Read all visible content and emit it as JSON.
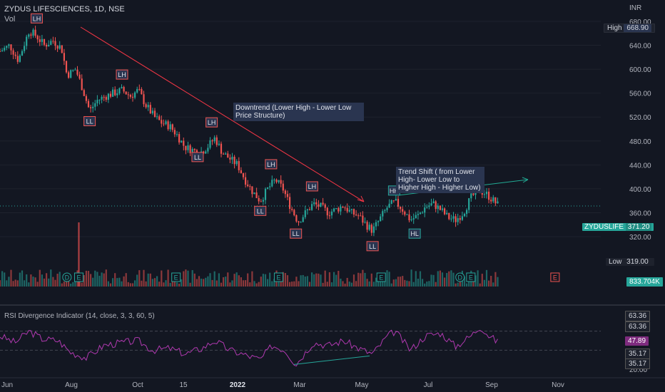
{
  "header": {
    "symbol_line": "ZYDUS LIFESCIENCES, 1D, NSE",
    "volume_label": "Vol"
  },
  "currency": "INR",
  "rsi_title": "RSI Divergence Indicator (14, close, 3, 3, 60, 5)",
  "price_tags": {
    "high_label": "High",
    "high_value": "668.90",
    "low_label": "Low",
    "low_value": "319.00",
    "symbol": "ZYDUSLIFE",
    "last_value": "371.20",
    "volume_value": "833.704K"
  },
  "rsi_tags": [
    "63.36",
    "63.36",
    "47.89",
    "35.17",
    "35.17"
  ],
  "annotations": {
    "downtrend": "Downtrend (Lower High - Lower Low Price Structure)",
    "trendshift": "Trend Shift ( from Lower High- Lower Low to Higher High - Higher Low)"
  },
  "colors": {
    "background": "#131722",
    "up": "#26a69a",
    "down": "#ef5350",
    "rsi_line": "#b039b0",
    "label_box": "#2a3550",
    "downtrend_arrow": "#f23645",
    "uptrend_arrow": "#22ab94"
  },
  "chart_data": {
    "type": "candlestick",
    "price_axis": {
      "ticks": [
        680,
        640,
        600,
        560,
        520,
        480,
        440,
        400,
        360,
        320
      ],
      "tick_labels": [
        "680.00",
        "640.00",
        "600.00",
        "560.00",
        "520.00",
        "480.00",
        "440.00",
        "400.00",
        "360.00",
        "320.00"
      ]
    },
    "x_axis": {
      "labels": [
        "Jun",
        "Aug",
        "Oct",
        "15",
        "2022",
        "Mar",
        "May",
        "Jul",
        "Sep",
        "Nov"
      ]
    },
    "rsi_axis": {
      "ticks": [
        20
      ],
      "tick_labels": [
        "20.00"
      ]
    },
    "swing_labels": [
      {
        "label": "LH",
        "date": "2021-07-05",
        "price": 668.9
      },
      {
        "label": "LL",
        "date": "2021-08-23",
        "price": 528
      },
      {
        "label": "LH",
        "date": "2021-09-22",
        "price": 575
      },
      {
        "label": "LH",
        "date": "2021-12-14",
        "price": 495
      },
      {
        "label": "LL",
        "date": "2021-12-01",
        "price": 468
      },
      {
        "label": "LH",
        "date": "2022-02-07",
        "price": 425
      },
      {
        "label": "LL",
        "date": "2022-01-28",
        "price": 378
      },
      {
        "label": "LH",
        "date": "2022-03-17",
        "price": 388
      },
      {
        "label": "LL",
        "date": "2022-03-02",
        "price": 340
      },
      {
        "label": "LL",
        "date": "2022-05-12",
        "price": 319
      },
      {
        "label": "HH",
        "date": "2022-06-01",
        "price": 381
      },
      {
        "label": "HL",
        "date": "2022-06-20",
        "price": 340
      }
    ],
    "event_markers": [
      {
        "label": "D",
        "date": "2021-08-02"
      },
      {
        "label": "E",
        "date": "2021-08-13"
      },
      {
        "label": "E",
        "date": "2021-11-11"
      },
      {
        "label": "E",
        "date": "2022-02-14"
      },
      {
        "label": "E",
        "date": "2022-05-20"
      },
      {
        "label": "E",
        "date": "2022-08-11"
      },
      {
        "label": "D",
        "date": "2022-08-01"
      },
      {
        "label": "E",
        "date": "2022-10-28"
      }
    ],
    "price_path": [
      [
        "2021-06-01",
        630
      ],
      [
        "2021-06-10",
        640
      ],
      [
        "2021-06-18",
        615
      ],
      [
        "2021-06-28",
        665
      ],
      [
        "2021-07-05",
        655
      ],
      [
        "2021-07-12",
        640
      ],
      [
        "2021-07-20",
        648
      ],
      [
        "2021-07-28",
        635
      ],
      [
        "2021-08-02",
        590
      ],
      [
        "2021-08-10",
        600
      ],
      [
        "2021-08-16",
        570
      ],
      [
        "2021-08-23",
        530
      ],
      [
        "2021-08-30",
        548
      ],
      [
        "2021-09-07",
        555
      ],
      [
        "2021-09-14",
        560
      ],
      [
        "2021-09-22",
        565
      ],
      [
        "2021-09-30",
        555
      ],
      [
        "2021-10-07",
        565
      ],
      [
        "2021-10-14",
        540
      ],
      [
        "2021-10-22",
        520
      ],
      [
        "2021-10-29",
        510
      ],
      [
        "2021-11-05",
        505
      ],
      [
        "2021-11-12",
        490
      ],
      [
        "2021-11-19",
        470
      ],
      [
        "2021-11-26",
        465
      ],
      [
        "2021-12-03",
        460
      ],
      [
        "2021-12-10",
        470
      ],
      [
        "2021-12-17",
        485
      ],
      [
        "2021-12-24",
        460
      ],
      [
        "2021-12-31",
        450
      ],
      [
        "2022-01-07",
        440
      ],
      [
        "2022-01-14",
        415
      ],
      [
        "2022-01-21",
        395
      ],
      [
        "2022-01-28",
        380
      ],
      [
        "2022-02-04",
        400
      ],
      [
        "2022-02-11",
        415
      ],
      [
        "2022-02-18",
        400
      ],
      [
        "2022-02-25",
        370
      ],
      [
        "2022-03-04",
        345
      ],
      [
        "2022-03-11",
        360
      ],
      [
        "2022-03-18",
        375
      ],
      [
        "2022-03-25",
        370
      ],
      [
        "2022-04-01",
        360
      ],
      [
        "2022-04-08",
        365
      ],
      [
        "2022-04-15",
        372
      ],
      [
        "2022-04-22",
        360
      ],
      [
        "2022-04-29",
        355
      ],
      [
        "2022-05-06",
        340
      ],
      [
        "2022-05-12",
        330
      ],
      [
        "2022-05-19",
        350
      ],
      [
        "2022-05-26",
        370
      ],
      [
        "2022-06-02",
        378
      ],
      [
        "2022-06-09",
        365
      ],
      [
        "2022-06-16",
        348
      ],
      [
        "2022-06-23",
        355
      ],
      [
        "2022-06-30",
        370
      ],
      [
        "2022-07-07",
        375
      ],
      [
        "2022-07-14",
        365
      ],
      [
        "2022-07-21",
        352
      ],
      [
        "2022-07-28",
        348
      ],
      [
        "2022-08-04",
        360
      ],
      [
        "2022-08-11",
        385
      ],
      [
        "2022-08-18",
        398
      ],
      [
        "2022-08-25",
        392
      ],
      [
        "2022-09-01",
        380
      ],
      [
        "2022-09-06",
        371.2
      ]
    ],
    "rsi_path": [
      [
        "2021-06-01",
        55
      ],
      [
        "2021-06-15",
        48
      ],
      [
        "2021-06-28",
        60
      ],
      [
        "2021-07-10",
        52
      ],
      [
        "2021-07-25",
        50
      ],
      [
        "2021-08-05",
        38
      ],
      [
        "2021-08-20",
        32
      ],
      [
        "2021-09-05",
        45
      ],
      [
        "2021-09-22",
        48
      ],
      [
        "2021-10-07",
        50
      ],
      [
        "2021-10-20",
        40
      ],
      [
        "2021-11-05",
        42
      ],
      [
        "2021-11-20",
        36
      ],
      [
        "2021-12-05",
        42
      ],
      [
        "2021-12-17",
        50
      ],
      [
        "2021-12-31",
        40
      ],
      [
        "2022-01-14",
        35
      ],
      [
        "2022-01-28",
        30
      ],
      [
        "2022-02-08",
        45
      ],
      [
        "2022-02-20",
        40
      ],
      [
        "2022-03-02",
        25
      ],
      [
        "2022-03-18",
        48
      ],
      [
        "2022-04-01",
        45
      ],
      [
        "2022-04-15",
        50
      ],
      [
        "2022-04-29",
        42
      ],
      [
        "2022-05-12",
        36
      ],
      [
        "2022-05-26",
        55
      ],
      [
        "2022-06-02",
        60
      ],
      [
        "2022-06-16",
        40
      ],
      [
        "2022-06-30",
        55
      ],
      [
        "2022-07-14",
        58
      ],
      [
        "2022-07-28",
        44
      ],
      [
        "2022-08-11",
        55
      ],
      [
        "2022-08-20",
        65
      ],
      [
        "2022-08-28",
        55
      ],
      [
        "2022-09-06",
        47.89
      ]
    ],
    "volume_spikes": [
      {
        "date": "2021-08-13",
        "relative": 1.0
      }
    ]
  }
}
